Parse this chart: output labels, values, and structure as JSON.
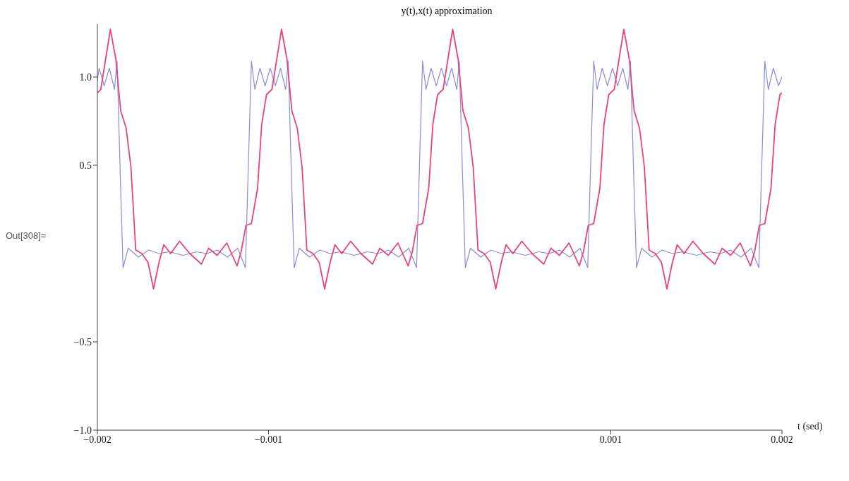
{
  "chart_data": {
    "type": "line",
    "title": "y(t),x(t) approximation",
    "xlabel": "t (sed)",
    "annotations": [
      "Out[308]="
    ],
    "xlim": [
      -0.002,
      0.002
    ],
    "xticks": [
      {
        "value": -0.002,
        "label": "−0.002"
      },
      {
        "value": -0.001,
        "label": "−0.001"
      },
      0.001,
      0.002
    ],
    "ylim": [
      -1.0,
      1.3
    ],
    "yticks": [
      {
        "value": -1,
        "label": "−1.0"
      },
      {
        "value": -0.5,
        "label": "−0.5"
      },
      0.5,
      {
        "value": 1,
        "label": "1.0"
      }
    ],
    "grid": false,
    "legend": false,
    "marker": "none",
    "line_style": "solid",
    "series": [
      {
        "color": "#8c8cd8",
        "x": [
          -0.002,
          -0.00199,
          -0.00196,
          -0.00193,
          -0.0019,
          -0.001885,
          -0.001868,
          -0.00185,
          -0.00182,
          -0.00176,
          -0.0017,
          -0.00164,
          -0.00158,
          -0.0015,
          -0.00142,
          -0.00136,
          -0.0013,
          -0.00124,
          -0.00118,
          -0.001135,
          -0.001118,
          -0.0011,
          -0.00108,
          -0.00105,
          -0.00102,
          -0.00099,
          -0.00096,
          -0.00093,
          -0.0009,
          -0.000885,
          -0.000868,
          -0.00085,
          -0.00082,
          -0.00076,
          -0.0007,
          -0.00064,
          -0.00058,
          -0.0005,
          -0.00042,
          -0.00036,
          -0.0003,
          -0.00024,
          -0.00018,
          -0.000135,
          -0.000118,
          -0.0001,
          -8e-05,
          -5e-05,
          -2e-05,
          1e-05,
          4e-05,
          7e-05,
          0.0001,
          0.000115,
          0.000132,
          0.00015,
          0.00018,
          0.00024,
          0.0003,
          0.00036,
          0.00042,
          0.0005,
          0.00058,
          0.00064,
          0.0007,
          0.00076,
          0.00082,
          0.000865,
          0.000882,
          0.0009,
          0.00092,
          0.00095,
          0.00098,
          0.00101,
          0.00104,
          0.00107,
          0.0011,
          0.001115,
          0.001132,
          0.00115,
          0.00118,
          0.00124,
          0.0013,
          0.00136,
          0.00142,
          0.0015,
          0.00158,
          0.00164,
          0.0017,
          0.00176,
          0.00182,
          0.001865,
          0.001882,
          0.0019,
          0.00192,
          0.00195,
          0.00198,
          0.002
        ],
        "values": [
          0.98,
          1.05,
          0.95,
          1.05,
          0.93,
          1.09,
          0.5,
          -0.08,
          0.03,
          -0.02,
          0.02,
          0,
          0.01,
          -0.01,
          0.01,
          0,
          0.02,
          -0.02,
          0.03,
          -0.08,
          0.5,
          1.09,
          0.93,
          1.05,
          0.95,
          1.05,
          0.95,
          1.05,
          0.93,
          1.09,
          0.5,
          -0.08,
          0.03,
          -0.02,
          0.02,
          0,
          0.01,
          -0.01,
          0.01,
          0,
          0.02,
          -0.02,
          0.03,
          -0.08,
          0.5,
          1.09,
          0.93,
          1.05,
          0.95,
          1.05,
          0.95,
          1.05,
          0.93,
          1.09,
          0.5,
          -0.08,
          0.03,
          -0.02,
          0.02,
          0,
          0.01,
          -0.01,
          0.01,
          0,
          0.02,
          -0.02,
          0.03,
          -0.08,
          0.5,
          1.09,
          0.93,
          1.05,
          0.95,
          1.05,
          0.95,
          1.05,
          0.93,
          1.09,
          0.5,
          -0.08,
          0.03,
          -0.02,
          0.02,
          0,
          0.01,
          -0.01,
          0.01,
          0,
          0.02,
          -0.02,
          0.03,
          -0.08,
          0.5,
          1.09,
          0.93,
          1.05,
          0.95,
          1.0
        ]
      },
      {
        "color": "#e8457e",
        "x": [
          -0.002,
          -0.00198,
          -0.001952,
          -0.001924,
          -0.001892,
          -0.001864,
          -0.001832,
          -0.001804,
          -0.001776,
          -0.00174,
          -0.001704,
          -0.001672,
          -0.00164,
          -0.001612,
          -0.001572,
          -0.00152,
          -0.00146,
          -0.001392,
          -0.00135,
          -0.0013,
          -0.001244,
          -0.001184,
          -0.00116,
          -0.001132,
          -0.0011,
          -0.001064,
          -0.00104,
          -0.001012,
          -0.00098,
          -0.000952,
          -0.000924,
          -0.000892,
          -0.000864,
          -0.000832,
          -0.000804,
          -0.000776,
          -0.00074,
          -0.000704,
          -0.000672,
          -0.00064,
          -0.000612,
          -0.000572,
          -0.00052,
          -0.00046,
          -0.000392,
          -0.00035,
          -0.0003,
          -0.000244,
          -0.000184,
          -0.00016,
          -0.000132,
          -0.0001,
          -6.4e-05,
          -4e-05,
          -1.2e-05,
          2e-05,
          4.8e-05,
          7.6e-05,
          0.000108,
          0.000136,
          0.000168,
          0.000196,
          0.000224,
          0.00026,
          0.000296,
          0.000328,
          0.00036,
          0.000388,
          0.000428,
          0.00048,
          0.00054,
          0.000608,
          0.00065,
          0.0007,
          0.000756,
          0.000816,
          0.00084,
          0.000868,
          0.0009,
          0.000936,
          0.00096,
          0.000988,
          0.00102,
          0.001048,
          0.001076,
          0.001108,
          0.001136,
          0.001168,
          0.001196,
          0.001224,
          0.00126,
          0.001296,
          0.001328,
          0.00136,
          0.001388,
          0.001428,
          0.00148,
          0.00154,
          0.001608,
          0.00165,
          0.0017,
          0.001756,
          0.001816,
          0.00184,
          0.001868,
          0.0019,
          0.001936,
          0.00196,
          0.001988,
          0.002
        ],
        "values": [
          0.91,
          0.93,
          1.1,
          1.27,
          1.1,
          0.81,
          0.71,
          0.49,
          0.02,
          0,
          -0.05,
          -0.2,
          -0.05,
          0.05,
          0,
          0.07,
          0,
          -0.06,
          0.03,
          -0.01,
          0.06,
          -0.07,
          0.01,
          0.16,
          0.17,
          0.37,
          0.73,
          0.9,
          0.93,
          1.1,
          1.27,
          1.1,
          0.81,
          0.71,
          0.49,
          0.02,
          0,
          -0.05,
          -0.2,
          -0.05,
          0.05,
          0,
          0.07,
          0,
          -0.06,
          0.03,
          -0.01,
          0.06,
          -0.07,
          0.01,
          0.16,
          0.17,
          0.37,
          0.73,
          0.9,
          0.93,
          1.1,
          1.27,
          1.1,
          0.81,
          0.71,
          0.49,
          0.02,
          0,
          -0.05,
          -0.2,
          -0.05,
          0.05,
          0,
          0.07,
          0,
          -0.06,
          0.03,
          -0.01,
          0.06,
          -0.07,
          0.01,
          0.16,
          0.17,
          0.37,
          0.73,
          0.9,
          0.93,
          1.1,
          1.27,
          1.1,
          0.81,
          0.71,
          0.49,
          0.02,
          0,
          -0.05,
          -0.2,
          -0.05,
          0.05,
          0,
          0.07,
          0,
          -0.06,
          0.03,
          -0.01,
          0.06,
          -0.07,
          0.01,
          0.16,
          0.17,
          0.37,
          0.73,
          0.9,
          0.91
        ]
      }
    ]
  }
}
